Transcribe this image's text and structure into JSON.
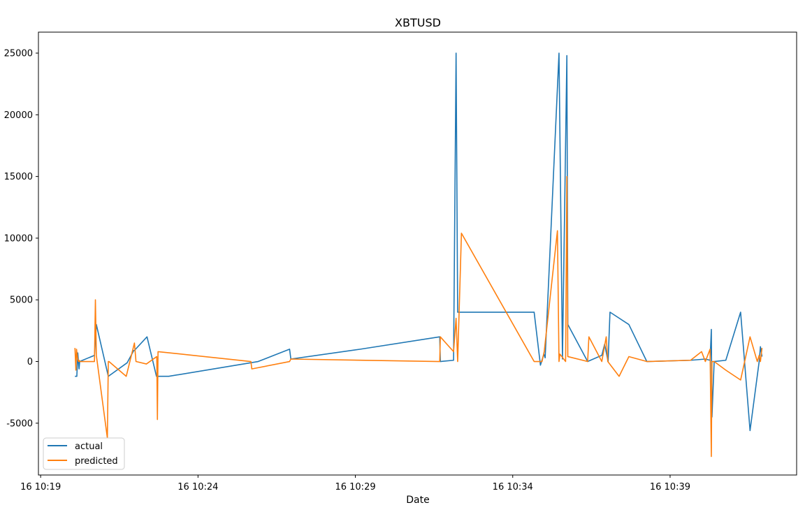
{
  "chart_data": {
    "type": "line",
    "title": "XBTUSD",
    "xlabel": "Date",
    "ylabel": "",
    "x_ticks": [
      {
        "t": 0,
        "label": "16 10:19"
      },
      {
        "t": 5,
        "label": "16 10:24"
      },
      {
        "t": 10,
        "label": "16 10:29"
      },
      {
        "t": 15,
        "label": "16 10:34"
      },
      {
        "t": 20,
        "label": "16 10:39"
      }
    ],
    "x_unit": "minutes after 16 10:19",
    "xlim": [
      -0.07,
      24.02
    ],
    "ylim": [
      -9200,
      26700
    ],
    "y_ticks": [
      -5000,
      0,
      5000,
      10000,
      15000,
      20000,
      25000
    ],
    "grid": false,
    "legend": {
      "position": "bottom-left",
      "entries": [
        "actual",
        "predicted"
      ]
    },
    "colors": {
      "actual": "#1f77b4",
      "predicted": "#ff7f0e"
    },
    "series": [
      {
        "name": "actual",
        "x": [
          1.09,
          1.15,
          1.18,
          1.22,
          1.24,
          1.71,
          1.77,
          2.15,
          2.75,
          2.96,
          2.98,
          3.38,
          3.68,
          3.71,
          4.07,
          6.91,
          7.91,
          7.95,
          10.16,
          12.68,
          12.7,
          13.12,
          13.2,
          13.25,
          13.37,
          15.68,
          15.88,
          15.99,
          16.03,
          16.47,
          16.58,
          16.72,
          16.75,
          17.38,
          17.83,
          17.92,
          18.03,
          18.09,
          18.69,
          19.26,
          20.65,
          21.12,
          21.27,
          21.31,
          21.33,
          21.4,
          21.77,
          22.24,
          22.54,
          22.83,
          22.87,
          22.92
        ],
        "y": [
          -1200,
          -1200,
          700,
          -600,
          0,
          500,
          3000,
          -1200,
          -100,
          900,
          900,
          2000,
          -1200,
          -1200,
          -1200,
          0,
          1000,
          200,
          1000,
          2000,
          0,
          100,
          25000,
          4000,
          4000,
          4000,
          -300,
          600,
          300,
          25000,
          200,
          24800,
          3000,
          0,
          500,
          1400,
          0,
          4000,
          3000,
          0,
          100,
          200,
          100,
          2600,
          -4500,
          0,
          100,
          4000,
          -5600,
          0,
          1200,
          400
        ]
      },
      {
        "name": "predicted",
        "x": [
          1.09,
          1.12,
          1.14,
          1.17,
          1.2,
          1.22,
          1.24,
          1.71,
          1.74,
          1.77,
          2.12,
          2.15,
          2.17,
          2.72,
          2.98,
          3.03,
          3.36,
          3.69,
          3.71,
          3.73,
          6.68,
          6.71,
          7.91,
          7.95,
          12.68,
          12.7,
          13.12,
          13.2,
          13.25,
          13.37,
          15.68,
          15.93,
          16.0,
          16.42,
          16.47,
          16.5,
          16.68,
          16.72,
          16.75,
          17.38,
          17.42,
          17.83,
          17.97,
          18.02,
          18.38,
          18.69,
          19.26,
          20.65,
          21.0,
          21.12,
          21.27,
          21.31,
          21.33,
          21.4,
          21.77,
          22.24,
          22.54,
          22.77,
          22.83,
          22.87,
          22.92
        ],
        "y": [
          1100,
          -700,
          1000,
          300,
          0,
          100,
          0,
          0,
          5000,
          500,
          -6200,
          0,
          0,
          -1200,
          1500,
          0,
          -200,
          400,
          -4700,
          800,
          0,
          -600,
          0,
          200,
          0,
          2000,
          800,
          3500,
          0,
          10400,
          0,
          0,
          800,
          10600,
          0,
          600,
          0,
          15000,
          400,
          0,
          2000,
          0,
          2000,
          0,
          -1200,
          400,
          0,
          100,
          800,
          0,
          1000,
          -7700,
          0,
          0,
          -700,
          -1500,
          2000,
          0,
          500,
          0,
          1100
        ]
      }
    ]
  }
}
